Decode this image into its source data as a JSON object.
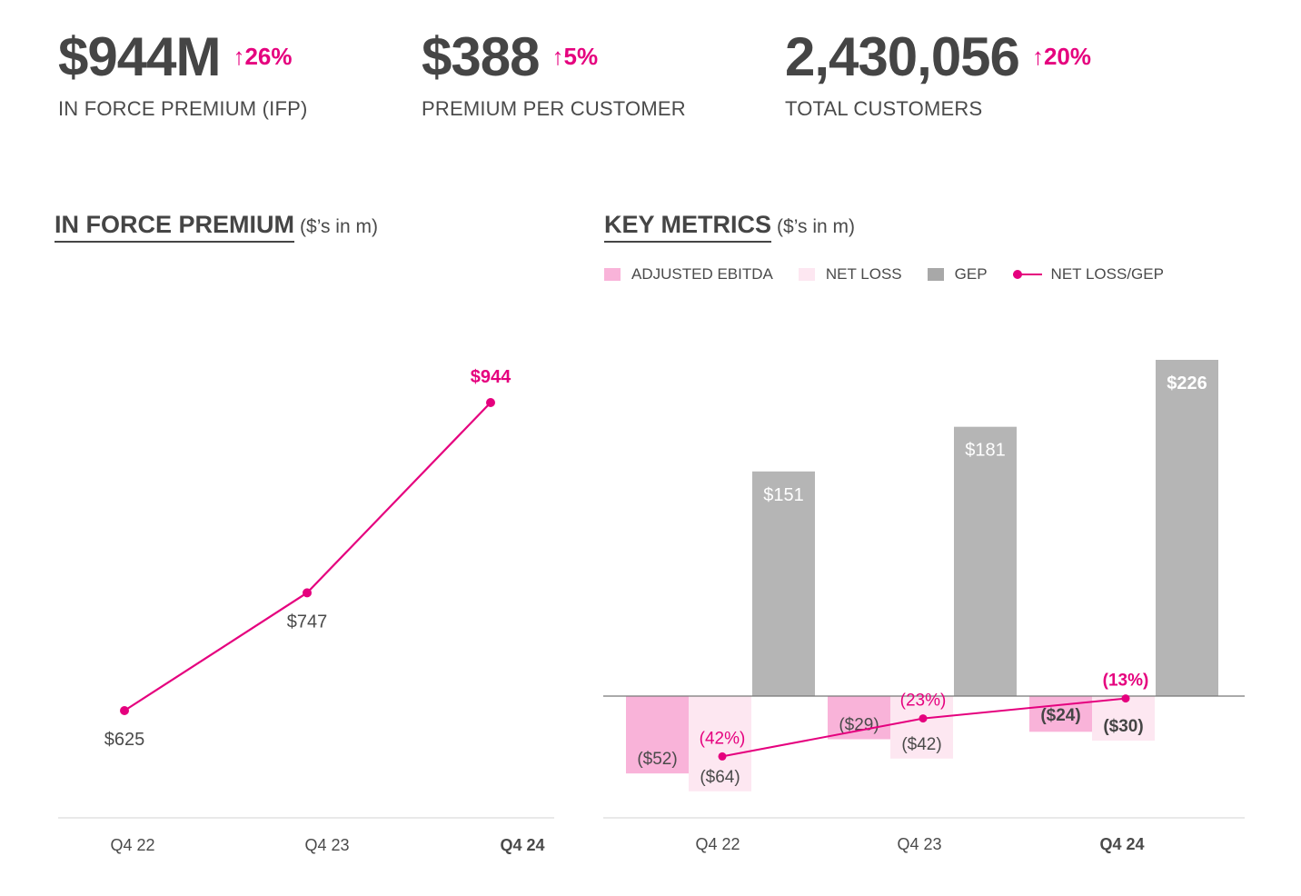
{
  "colors": {
    "accent": "#e5007e",
    "ebitda": "#f9b3d9",
    "netloss": "#fde7f1",
    "gep": "#b5b5b5",
    "axis": "#e2e2e2",
    "text": "#4a4a4a"
  },
  "kpis": [
    {
      "value": "$944M",
      "change": "↑26%",
      "label": "IN FORCE PREMIUM (IFP)"
    },
    {
      "value": "$388",
      "change": "↑5%",
      "label": "PREMIUM PER CUSTOMER"
    },
    {
      "value": "2,430,056",
      "change": "↑20%",
      "label": "TOTAL CUSTOMERS"
    }
  ],
  "chart_data": [
    {
      "type": "line",
      "title": "IN FORCE PREMIUM",
      "subtitle": "($’s in m)",
      "categories": [
        "Q4 22",
        "Q4 23",
        "Q4 24"
      ],
      "values": [
        625,
        747,
        944
      ],
      "value_labels": [
        "$625",
        "$747",
        "$944"
      ],
      "xlabel": "",
      "ylabel": "",
      "ylim": [
        520,
        980
      ],
      "highlight_last": true
    },
    {
      "type": "bar",
      "title": "KEY METRICS",
      "subtitle": "($’s in m)",
      "legend": [
        "ADJUSTED EBITDA",
        "NET LOSS",
        "GEP",
        "NET LOSS/GEP"
      ],
      "legend_position": "top-left",
      "categories": [
        "Q4 22",
        "Q4 23",
        "Q4 24"
      ],
      "ylim": [
        -70,
        230
      ],
      "series": [
        {
          "name": "ADJUSTED EBITDA",
          "values": [
            -52,
            -29,
            -24
          ],
          "labels": [
            "($52)",
            "($29)",
            "($24)"
          ]
        },
        {
          "name": "NET LOSS",
          "values": [
            -64,
            -42,
            -30
          ],
          "labels": [
            "($64)",
            "($42)",
            "($30)"
          ]
        },
        {
          "name": "GEP",
          "values": [
            151,
            181,
            226
          ],
          "labels": [
            "$151",
            "$181",
            "$226"
          ]
        },
        {
          "name": "NET LOSS/GEP",
          "type": "line",
          "values": [
            -42,
            -23,
            -13
          ],
          "labels": [
            "(42%)",
            "(23%)",
            "(13%)"
          ]
        }
      ]
    }
  ]
}
